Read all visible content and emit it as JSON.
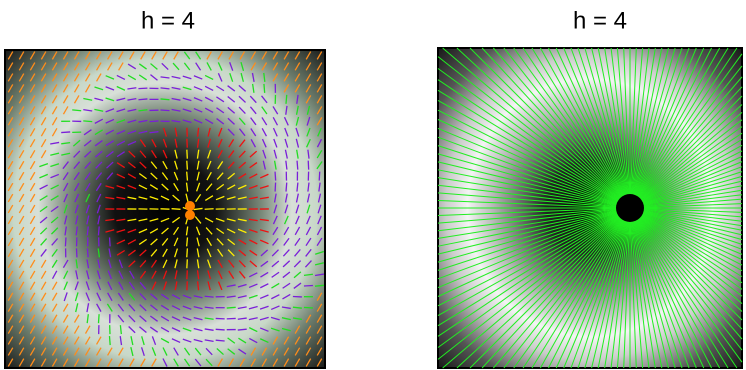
{
  "panels": [
    {
      "title": "h = 4"
    },
    {
      "title": "h = 4"
    }
  ]
}
